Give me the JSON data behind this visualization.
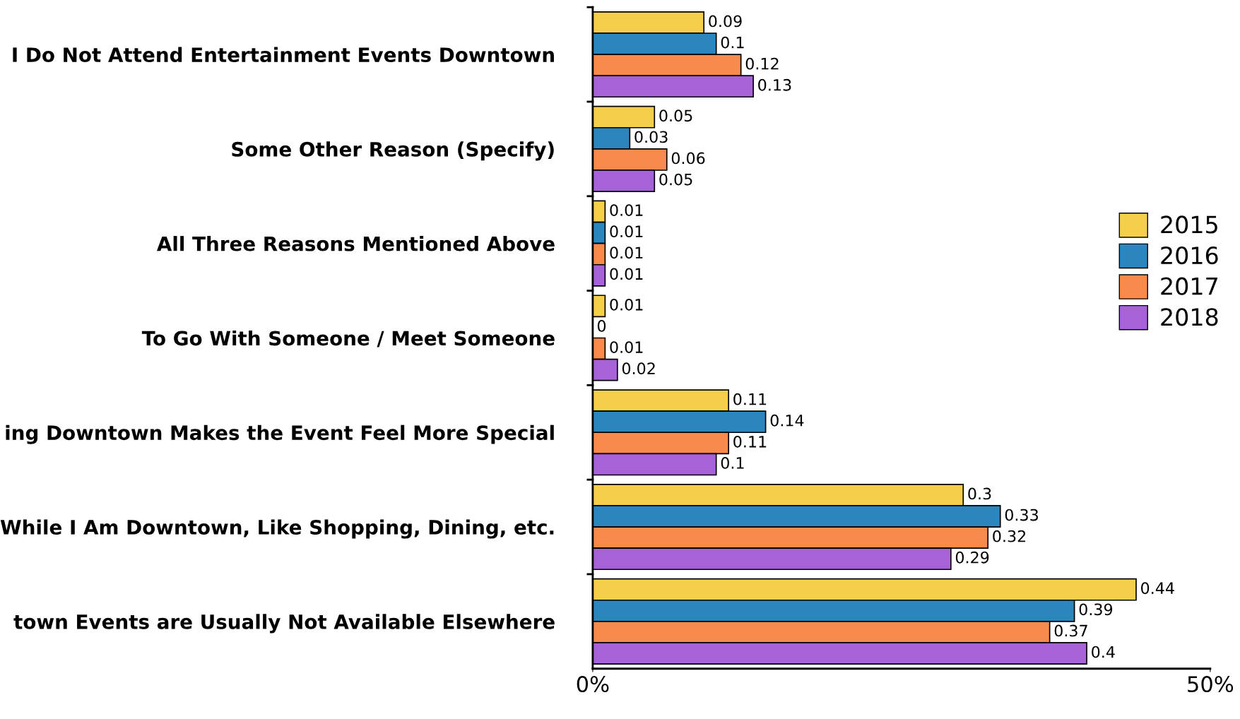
{
  "chart_data": {
    "type": "bar",
    "orientation": "horizontal",
    "categories": [
      "I Do Not Attend Entertainment Events Downtown",
      "Some Other Reason (Specify)",
      "All Three Reasons Mentioned Above",
      "To Go With Someone / Meet Someone",
      "ing Downtown Makes the Event Feel More Special",
      "While I Am Downtown, Like Shopping, Dining, etc.",
      "town Events are Usually Not Available Elsewhere"
    ],
    "series": [
      {
        "name": "2015",
        "color": "#f5cf4c",
        "values": [
          0.09,
          0.05,
          0.01,
          0.01,
          0.11,
          0.3,
          0.44
        ]
      },
      {
        "name": "2016",
        "color": "#2a86bd",
        "values": [
          0.1,
          0.03,
          0.01,
          0,
          0.14,
          0.33,
          0.39
        ]
      },
      {
        "name": "2017",
        "color": "#f88a4c",
        "values": [
          0.12,
          0.06,
          0.01,
          0.01,
          0.11,
          0.32,
          0.37
        ]
      },
      {
        "name": "2018",
        "color": "#a762d8",
        "values": [
          0.13,
          0.05,
          0.01,
          0.02,
          0.1,
          0.29,
          0.4
        ]
      }
    ],
    "xlim": [
      0,
      0.5
    ],
    "xticks": [
      {
        "value": 0,
        "label": "0%"
      },
      {
        "value": 0.5,
        "label": "50%"
      }
    ],
    "data_labels": true,
    "legend": "right",
    "grid": false
  }
}
